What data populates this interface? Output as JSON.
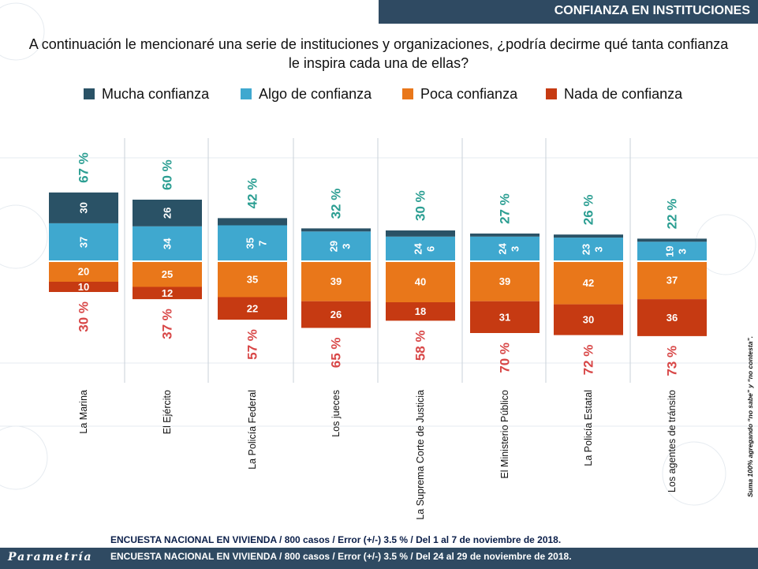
{
  "header": {
    "title": "CONFIANZA EN INSTITUCIONES"
  },
  "question": "A continuación le mencionaré una serie de instituciones y organizaciones, ¿podría decirme qué tanta confianza le inspira cada una de ellas?",
  "legend": [
    {
      "label": "Mucha confianza",
      "color": "#2a5266"
    },
    {
      "label": "Algo de confianza",
      "color": "#3fa8cf"
    },
    {
      "label": "Poca confianza",
      "color": "#e9771a"
    },
    {
      "label": "Nada de confianza",
      "color": "#c63a12"
    }
  ],
  "colors": {
    "positive_total": "#2b9e92",
    "negative_total": "#d84747"
  },
  "chart_data": {
    "type": "bar",
    "subtype": "diverging-stacked",
    "categories": [
      "La Marina",
      "El Ejército",
      "La Policía Federal",
      "Los jueces",
      "La Suprema Corte de Justicia",
      "El Ministerio Público",
      "La Policía Estatal",
      "Los agentes de tránsito"
    ],
    "series": [
      {
        "name": "Mucha confianza",
        "values": [
          30,
          26,
          7,
          3,
          6,
          3,
          3,
          3
        ]
      },
      {
        "name": "Algo de confianza",
        "values": [
          37,
          34,
          35,
          29,
          24,
          24,
          23,
          19
        ]
      },
      {
        "name": "Poca confianza",
        "values": [
          20,
          25,
          35,
          39,
          40,
          39,
          42,
          37
        ]
      },
      {
        "name": "Nada de confianza",
        "values": [
          10,
          12,
          22,
          26,
          18,
          31,
          30,
          36
        ]
      }
    ],
    "positive_totals": [
      "67 %",
      "60 %",
      "42 %",
      "32 %",
      "30 %",
      "27 %",
      "26 %",
      "22 %"
    ],
    "negative_totals": [
      "30 %",
      "37 %",
      "57 %",
      "65 %",
      "58 %",
      "70 %",
      "72 %",
      "73 %"
    ],
    "legend_position": "top"
  },
  "footer": {
    "logo": "Parametría",
    "line1": "ENCUESTA NACIONAL EN VIVIENDA / 800 casos / Error (+/-) 3.5 % / Del 1 al 7 de noviembre de 2018.",
    "line2": "ENCUESTA NACIONAL EN VIVIENDA / 800 casos / Error (+/-) 3.5 % / Del 24 al 29 de noviembre de 2018."
  },
  "side_note": "Suma 100% agregando “no sabe” y “no contesta”."
}
